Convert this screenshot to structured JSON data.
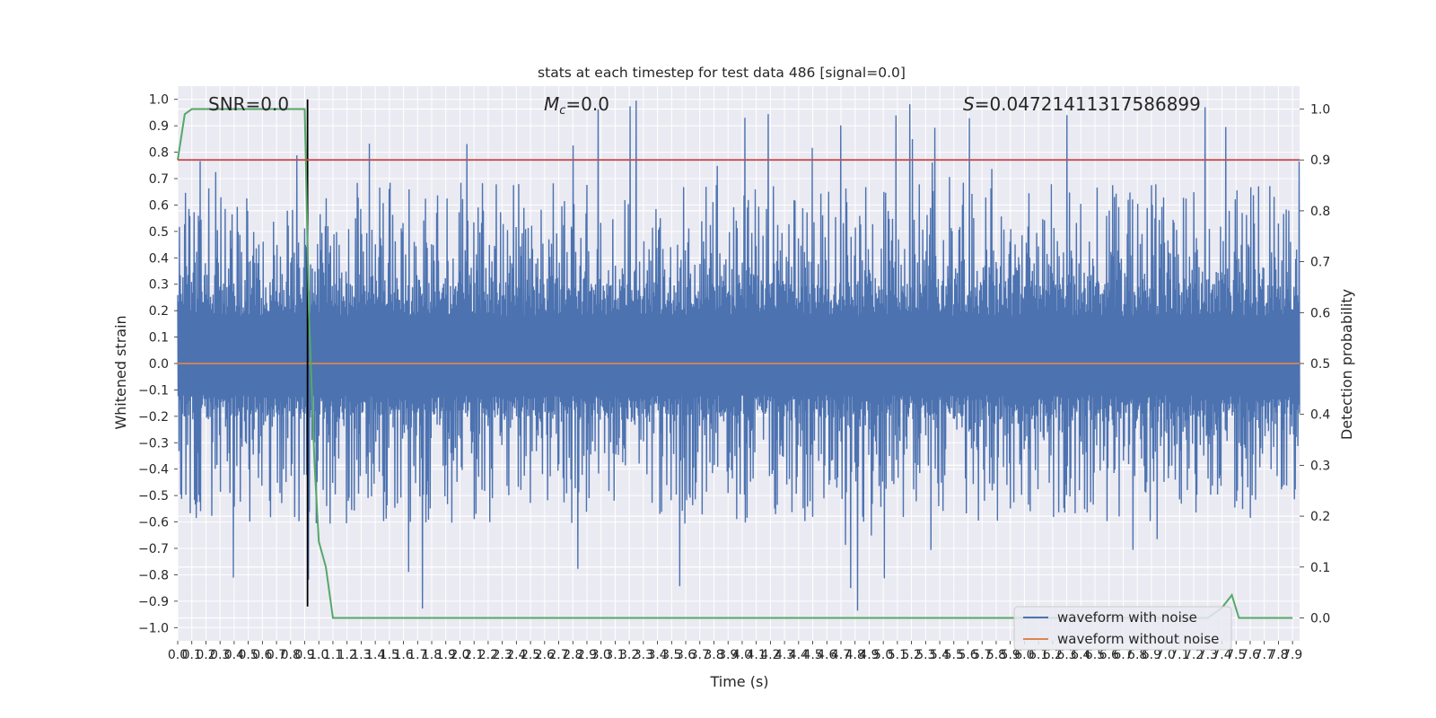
{
  "chart_data": {
    "type": "line",
    "title": "stats at each timestep for test data 486 [signal=0.0]",
    "xlabel": "Time (s)",
    "ylabel": "Whitened strain",
    "ylabel_right": "Detection probability",
    "xlim": [
      0.0,
      7.95
    ],
    "ylim": [
      -1.05,
      1.05
    ],
    "ylim_right": [
      -0.045,
      1.045
    ],
    "x_ticks": [
      "0.0",
      "0.1",
      "0.2",
      "0.3",
      "0.4",
      "0.5",
      "0.6",
      "0.7",
      "0.8",
      "0.9",
      "1.0",
      "1.1",
      "1.2",
      "1.3",
      "1.4",
      "1.5",
      "1.6",
      "1.7",
      "1.8",
      "1.9",
      "2.0",
      "2.1",
      "2.2",
      "2.3",
      "2.4",
      "2.5",
      "2.6",
      "2.7",
      "2.8",
      "2.9",
      "3.0",
      "3.1",
      "3.2",
      "3.3",
      "3.4",
      "3.5",
      "3.6",
      "3.7",
      "3.8",
      "3.9",
      "4.0",
      "4.1",
      "4.2",
      "4.3",
      "4.4",
      "4.5",
      "4.6",
      "4.7",
      "4.8",
      "4.9",
      "5.0",
      "5.1",
      "5.2",
      "5.3",
      "5.4",
      "5.5",
      "5.6",
      "5.7",
      "5.8",
      "5.9",
      "6.0",
      "6.1",
      "6.2",
      "6.3",
      "6.4",
      "6.5",
      "6.6",
      "6.7",
      "6.8",
      "6.9",
      "7.0",
      "7.1",
      "7.2",
      "7.3",
      "7.4",
      "7.5",
      "7.6",
      "7.7",
      "7.8",
      "7.9"
    ],
    "y_ticks": [
      "1.0",
      "0.9",
      "0.8",
      "0.7",
      "0.6",
      "0.5",
      "0.4",
      "0.3",
      "0.2",
      "0.1",
      "0.0",
      "−0.1",
      "−0.2",
      "−0.3",
      "−0.4",
      "−0.5",
      "−0.6",
      "−0.7",
      "−0.8",
      "−0.9",
      "−1.0"
    ],
    "y_ticks_right": [
      "1.0",
      "0.9",
      "0.8",
      "0.7",
      "0.6",
      "0.5",
      "0.4",
      "0.3",
      "0.2",
      "0.1",
      "0.0"
    ],
    "annotations": {
      "snr": "SNR=0.0",
      "mc_symbol": "M",
      "mc_sub": "c",
      "mc_value": "=0.0",
      "s_symbol": "S",
      "s_value": "=0.04721411317586899"
    },
    "grid": true,
    "legend_position": "bottom-right",
    "series": [
      {
        "name": "waveform with noise",
        "color": "#4c72b0",
        "axis": "left",
        "kind": "noise",
        "x_range": [
          0.0,
          7.95
        ],
        "approx_range": [
          -0.94,
          1.0
        ],
        "core_band": [
          -0.2,
          0.3
        ]
      },
      {
        "name": "waveform without noise",
        "color": "#dd8452",
        "axis": "left",
        "x": [
          0.0,
          7.95
        ],
        "y": [
          0.0,
          0.0
        ]
      },
      {
        "name": "detection probability",
        "color": "#55a868",
        "axis": "right",
        "x": [
          0.0,
          0.05,
          0.1,
          0.9,
          0.93,
          0.97,
          1.0,
          1.05,
          1.1,
          1.15,
          7.3,
          7.4,
          7.47,
          7.52,
          7.6,
          7.8,
          7.9
        ],
        "y": [
          0.9,
          0.99,
          1.0,
          1.0,
          0.6,
          0.3,
          0.15,
          0.1,
          0.0,
          0.0,
          0.0,
          0.02,
          0.045,
          0.0,
          0.0,
          0.0,
          0.0
        ]
      },
      {
        "name": "threshold",
        "color": "#c44e52",
        "axis": "right",
        "x": [
          0.0,
          7.95
        ],
        "y": [
          0.9,
          0.9
        ]
      },
      {
        "name": "event marker",
        "color": "#000000",
        "axis": "left",
        "x": [
          0.92,
          0.92
        ],
        "y": [
          -0.92,
          1.0
        ]
      }
    ],
    "colors": {
      "plot_background": "#eaeaf2",
      "grid": "#ffffff",
      "text": "#262626",
      "legend_background": "#eaeaf2",
      "legend_border": "#cccccc"
    }
  }
}
